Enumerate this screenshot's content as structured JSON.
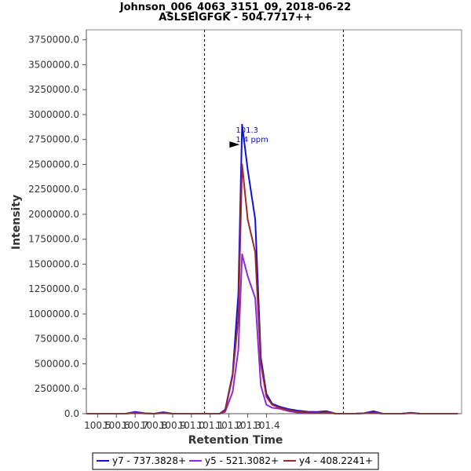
{
  "chart_data": {
    "type": "line",
    "title": "Johnson_006_4063_3151_09, 2018-06-22",
    "subtitle": "ASLSEIGFGK - 504.7717++",
    "xlabel": "Retention Time",
    "ylabel": "Intensity",
    "xlim": [
      100.44,
      102.44
    ],
    "ylim": [
      0,
      3850000
    ],
    "xticks": [
      100.5,
      100.6,
      100.7,
      100.8,
      100.9,
      101.0,
      101.1,
      101.2,
      101.3,
      101.4
    ],
    "xtick_labels": [
      "100.5",
      "100.6",
      "100.7",
      "100.8",
      "100.9",
      "101.0",
      "101.1",
      "101.2",
      "101.3",
      "101.4"
    ],
    "yticks": [
      0,
      250000,
      500000,
      750000,
      1000000,
      1250000,
      1500000,
      1750000,
      2000000,
      2250000,
      2500000,
      2750000,
      3000000,
      3250000,
      3500000,
      3750000
    ],
    "ytick_labels": [
      "0.0",
      "250000.0",
      "500000.0",
      "750000.0",
      "1000000.0",
      "1250000.0",
      "1500000.0",
      "1750000.0",
      "2000000.0",
      "2250000.0",
      "2500000.0",
      "2750000.0",
      "3000000.0",
      "3250000.0",
      "3500000.0",
      "3750000.0"
    ],
    "vlines": [
      101.07,
      101.81
    ],
    "annotation": {
      "x": 101.27,
      "y": 2700000,
      "line1": "101.3",
      "line2": "1.4 ppm"
    },
    "legend_position": "bottom",
    "series": [
      {
        "name": "y7 - 737.3828+",
        "color": "#1010dd",
        "x": [
          100.44,
          100.5,
          100.55,
          100.6,
          100.65,
          100.7,
          100.75,
          100.8,
          100.85,
          100.9,
          100.95,
          101.0,
          101.05,
          101.1,
          101.15,
          101.18,
          101.22,
          101.25,
          101.27,
          101.3,
          101.34,
          101.37,
          101.4,
          101.43,
          101.47,
          101.52,
          101.57,
          101.62,
          101.67,
          101.72,
          101.77,
          101.82,
          101.87,
          101.92,
          101.97,
          102.02,
          102.07,
          102.12,
          102.17,
          102.22,
          102.27,
          102.32,
          102.37,
          102.42
        ],
        "y": [
          0,
          0,
          0,
          0,
          0,
          18000,
          5000,
          0,
          15000,
          0,
          0,
          0,
          0,
          0,
          0,
          40000,
          400000,
          1200000,
          2900000,
          2450000,
          1950000,
          560000,
          200000,
          100000,
          70000,
          45000,
          30000,
          20000,
          18000,
          25000,
          0,
          0,
          0,
          5000,
          25000,
          0,
          0,
          0,
          10000,
          0,
          0,
          0,
          0,
          0
        ]
      },
      {
        "name": "y5 - 521.3082+",
        "color": "#8a2be2",
        "x": [
          100.44,
          100.5,
          100.55,
          100.6,
          100.65,
          100.7,
          100.75,
          100.8,
          100.85,
          100.9,
          100.95,
          101.0,
          101.05,
          101.1,
          101.15,
          101.18,
          101.22,
          101.25,
          101.27,
          101.3,
          101.34,
          101.37,
          101.4,
          101.43,
          101.47,
          101.52,
          101.57,
          101.62,
          101.67,
          101.72,
          101.77,
          101.82,
          101.87,
          101.92,
          101.97,
          102.02,
          102.07,
          102.12,
          102.17,
          102.22,
          102.27,
          102.32,
          102.37,
          102.42
        ],
        "y": [
          0,
          0,
          0,
          0,
          0,
          8000,
          2000,
          0,
          5000,
          0,
          0,
          0,
          0,
          0,
          0,
          20000,
          220000,
          640000,
          1600000,
          1380000,
          1160000,
          280000,
          90000,
          60000,
          50000,
          25000,
          10000,
          8000,
          5000,
          10000,
          0,
          0,
          0,
          3000,
          8000,
          0,
          0,
          0,
          5000,
          0,
          0,
          0,
          0,
          0
        ]
      },
      {
        "name": "y4 - 408.2241+",
        "color": "#a02828",
        "x": [
          100.44,
          100.5,
          100.55,
          100.6,
          100.65,
          100.7,
          100.75,
          100.8,
          100.85,
          100.9,
          100.95,
          101.0,
          101.05,
          101.1,
          101.15,
          101.18,
          101.22,
          101.25,
          101.27,
          101.3,
          101.34,
          101.37,
          101.4,
          101.43,
          101.47,
          101.52,
          101.57,
          101.62,
          101.67,
          101.72,
          101.77,
          101.82,
          101.87,
          101.92,
          101.97,
          102.02,
          102.07,
          102.12,
          102.17,
          102.22,
          102.27,
          102.32,
          102.37,
          102.42
        ],
        "y": [
          0,
          0,
          0,
          0,
          0,
          10000,
          3000,
          0,
          8000,
          0,
          0,
          0,
          0,
          0,
          0,
          30000,
          380000,
          960000,
          2500000,
          1950000,
          1620000,
          500000,
          170000,
          90000,
          60000,
          35000,
          20000,
          12000,
          10000,
          15000,
          0,
          0,
          0,
          4000,
          12000,
          0,
          0,
          0,
          8000,
          0,
          0,
          0,
          0,
          0
        ]
      }
    ]
  }
}
